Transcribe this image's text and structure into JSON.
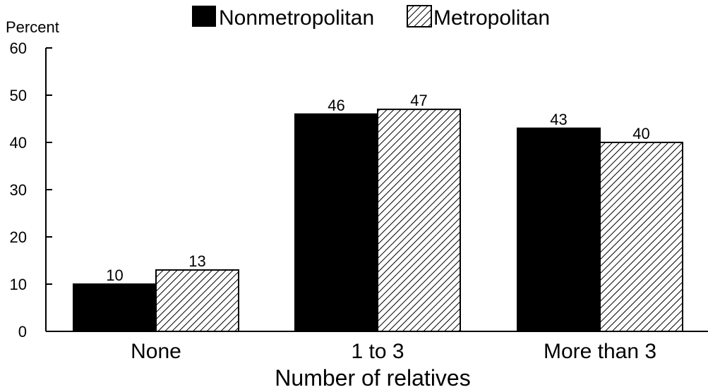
{
  "chart_data": {
    "type": "bar",
    "categories": [
      "None",
      "1 to 3",
      "More than 3"
    ],
    "series": [
      {
        "name": "Nonmetropolitan",
        "values": [
          10,
          46,
          43
        ],
        "fill": "#000000",
        "pattern": "solid"
      },
      {
        "name": "Metropolitan",
        "values": [
          13,
          47,
          40
        ],
        "fill": "#ffffff",
        "pattern": "diagonal-hatch"
      }
    ],
    "title": "",
    "xlabel": "Number of relatives",
    "ylabel": "Percent",
    "ylim": [
      0,
      60
    ],
    "yticks": [
      0,
      10,
      20,
      30,
      40,
      50,
      60
    ],
    "legend_position": "top-center",
    "grid": false,
    "data_labels": true
  }
}
